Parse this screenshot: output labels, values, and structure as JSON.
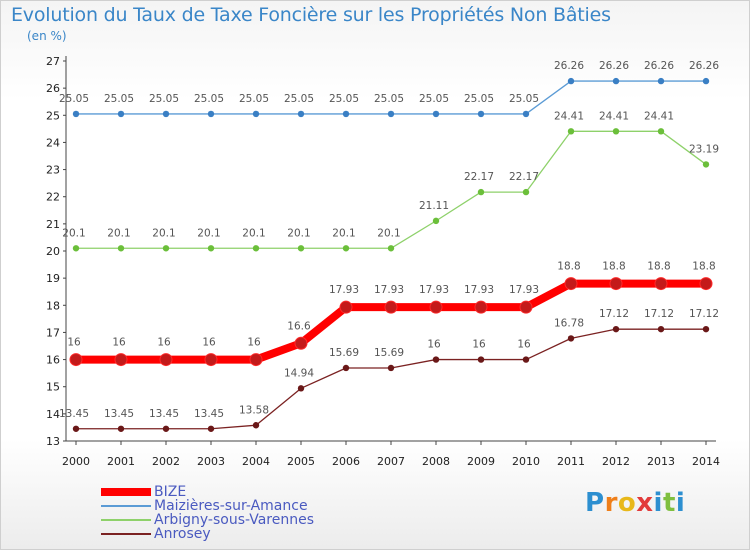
{
  "title": "Evolution du Taux de Taxe Foncière sur les Propriétés Non Bâties",
  "subtitle": "(en %)",
  "brand": {
    "text": "Proxiti",
    "letters": [
      {
        "ch": "P",
        "color": "#2d8fd0"
      },
      {
        "ch": "r",
        "color": "#ef7f1a"
      },
      {
        "ch": "o",
        "color": "#e8b81a"
      },
      {
        "ch": "x",
        "color": "#e23b3b"
      },
      {
        "ch": "i",
        "color": "#2d8fd0"
      },
      {
        "ch": "t",
        "color": "#7fbf3f"
      },
      {
        "ch": "i",
        "color": "#2d8fd0"
      }
    ]
  },
  "chart_data": {
    "type": "line",
    "title": "Evolution du Taux de Taxe Foncière sur les Propriétés Non Bâties",
    "ylabel": "(en %)",
    "xlabel": "",
    "x": [
      "2000",
      "2001",
      "2002",
      "2003",
      "2004",
      "2005",
      "2006",
      "2007",
      "2008",
      "2009",
      "2010",
      "2011",
      "2012",
      "2013",
      "2014"
    ],
    "ylim": [
      13,
      27
    ],
    "yticks": [
      13,
      14,
      15,
      16,
      17,
      18,
      19,
      20,
      21,
      22,
      23,
      24,
      25,
      26,
      27
    ],
    "grid": false,
    "legend_position": "bottom-left",
    "series": [
      {
        "name": "BIZE",
        "color": "#ff0000",
        "marker": "#c41a1a",
        "emphasis": true,
        "values": [
          16,
          16,
          16,
          16,
          16,
          16.6,
          17.93,
          17.93,
          17.93,
          17.93,
          17.93,
          18.8,
          18.8,
          18.8,
          18.8
        ],
        "labels": [
          "16",
          "16",
          "16",
          "16",
          "16",
          "16.6",
          "17.93",
          "17.93",
          "17.93",
          "17.93",
          "17.93",
          "18.8",
          "18.8",
          "18.8",
          "18.8"
        ]
      },
      {
        "name": "Maizières-sur-Amance",
        "color": "#5b9bd5",
        "marker": "#3a7fc4",
        "emphasis": false,
        "values": [
          25.05,
          25.05,
          25.05,
          25.05,
          25.05,
          25.05,
          25.05,
          25.05,
          25.05,
          25.05,
          25.05,
          26.26,
          26.26,
          26.26,
          26.26
        ],
        "labels": [
          "25.05",
          "25.05",
          "25.05",
          "25.05",
          "25.05",
          "25.05",
          "25.05",
          "25.05",
          "25.05",
          "25.05",
          "25.05",
          "26.26",
          "26.26",
          "26.26",
          "26.26"
        ]
      },
      {
        "name": "Arbigny-sous-Varennes",
        "color": "#8ed16a",
        "marker": "#6bbf3a",
        "emphasis": false,
        "values": [
          20.1,
          20.1,
          20.1,
          20.1,
          20.1,
          20.1,
          20.1,
          20.1,
          21.11,
          22.17,
          22.17,
          24.41,
          24.41,
          24.41,
          23.19
        ],
        "labels": [
          "20.1",
          "20.1",
          "20.1",
          "20.1",
          "20.1",
          "20.1",
          "20.1",
          "20.1",
          "21.11",
          "22.17",
          "22.17",
          "24.41",
          "24.41",
          "24.41",
          "23.19"
        ]
      },
      {
        "name": "Anrosey",
        "color": "#7b2222",
        "marker": "#6a1818",
        "emphasis": false,
        "values": [
          13.45,
          13.45,
          13.45,
          13.45,
          13.58,
          14.94,
          15.69,
          15.69,
          16,
          16,
          16,
          16.78,
          17.12,
          17.12,
          17.12
        ],
        "labels": [
          "13.45",
          "13.45",
          "13.45",
          "13.45",
          "13.58",
          "14.94",
          "15.69",
          "15.69",
          "16",
          "16",
          "16",
          "16.78",
          "17.12",
          "17.12",
          "17.12"
        ]
      }
    ]
  }
}
